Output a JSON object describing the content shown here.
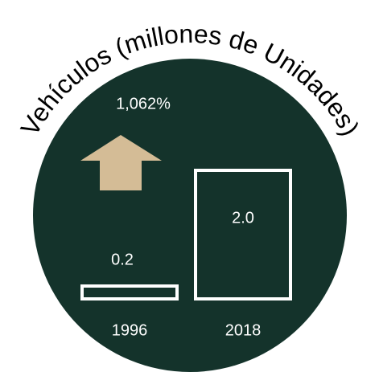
{
  "chart_data": {
    "type": "bar",
    "title": "Vehículos (millones de Unidades)",
    "categories": [
      "1996",
      "2018"
    ],
    "values": [
      0.2,
      2.0
    ],
    "value_labels": [
      "0.2",
      "2.0"
    ],
    "annotation": "1,062%",
    "color": "#ffffff",
    "background": "#14332b",
    "arrow_color": "#d4bc96"
  }
}
